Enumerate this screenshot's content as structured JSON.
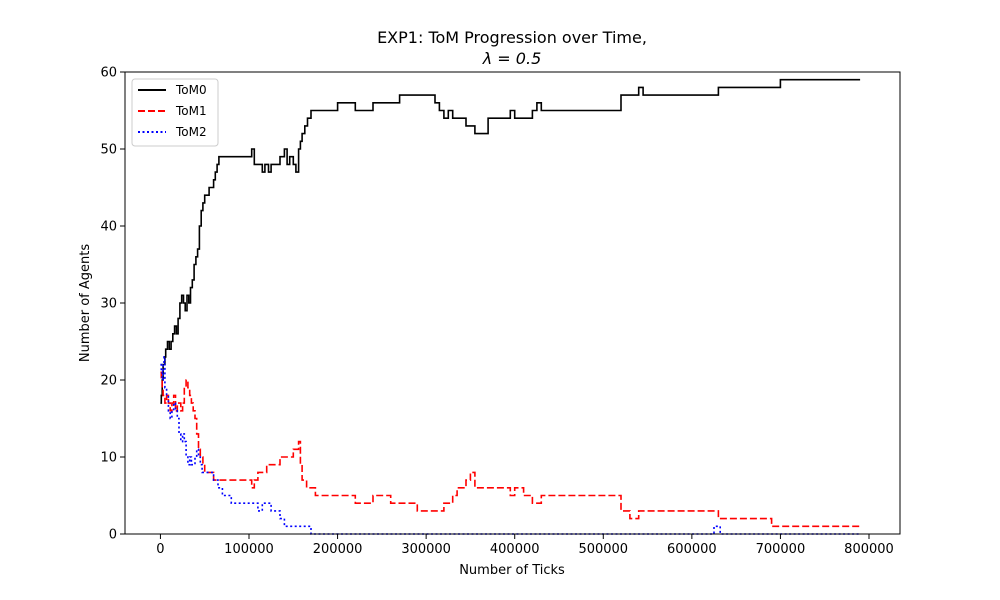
{
  "chart_data": {
    "type": "line",
    "title": "EXP1: ToM Progression over Time,",
    "subtitle": "λ = 0.5",
    "xlabel": "Number of Ticks",
    "ylabel": "Number of Agents",
    "xlim": [
      -40000,
      835000
    ],
    "ylim": [
      0,
      60
    ],
    "xticks": [
      0,
      100000,
      200000,
      300000,
      400000,
      500000,
      600000,
      700000,
      800000
    ],
    "xtick_labels": [
      "0",
      "100000",
      "200000",
      "300000",
      "400000",
      "500000",
      "600000",
      "700000",
      "800000"
    ],
    "yticks": [
      0,
      10,
      20,
      30,
      40,
      50,
      60
    ],
    "ytick_labels": [
      "0",
      "10",
      "20",
      "30",
      "40",
      "50",
      "60"
    ],
    "grid": false,
    "legend_position": "top-left",
    "series": [
      {
        "name": "ToM0",
        "color": "#000000",
        "style": "solid",
        "x": [
          0,
          1000,
          2000,
          3000,
          5000,
          6000,
          8000,
          10000,
          12000,
          14000,
          16000,
          18000,
          20000,
          22000,
          24000,
          26000,
          28000,
          30000,
          32000,
          34000,
          36000,
          38000,
          40000,
          42000,
          44000,
          46000,
          48000,
          50000,
          55000,
          60000,
          62000,
          64000,
          66000,
          68000,
          70000,
          80000,
          100000,
          103000,
          106000,
          110000,
          115000,
          118000,
          122000,
          125000,
          130000,
          135000,
          140000,
          143000,
          146000,
          150000,
          153000,
          156000,
          158000,
          160000,
          163000,
          166000,
          170000,
          175000,
          180000,
          200000,
          205000,
          220000,
          240000,
          245000,
          270000,
          300000,
          310000,
          315000,
          320000,
          325000,
          330000,
          340000,
          345000,
          350000,
          355000,
          370000,
          390000,
          395000,
          400000,
          420000,
          425000,
          430000,
          440000,
          480000,
          490000,
          500000,
          505000,
          520000,
          540000,
          545000,
          560000,
          600000,
          610000,
          625000,
          630000,
          640000,
          680000,
          690000,
          700000,
          720000,
          760000,
          790000
        ],
        "y": [
          17,
          18,
          20,
          22,
          23,
          24,
          25,
          24,
          25,
          26,
          27,
          26,
          28,
          30,
          31,
          30,
          29,
          31,
          30,
          32,
          33,
          35,
          36,
          37,
          40,
          42,
          43,
          44,
          45,
          46,
          47,
          48,
          49,
          49,
          49,
          49,
          49,
          50,
          48,
          48,
          47,
          48,
          47,
          48,
          48,
          49,
          50,
          48,
          49,
          48,
          47,
          50,
          51,
          52,
          53,
          54,
          55,
          55,
          55,
          56,
          56,
          55,
          56,
          56,
          57,
          57,
          56,
          55,
          54,
          55,
          54,
          54,
          53,
          53,
          52,
          54,
          54,
          55,
          54,
          55,
          56,
          55,
          55,
          55,
          55,
          55,
          55,
          57,
          58,
          57,
          57,
          57,
          57,
          57,
          58,
          58,
          58,
          58,
          59,
          59,
          59,
          59
        ]
      },
      {
        "name": "ToM1",
        "color": "#ff0000",
        "style": "dashed",
        "x": [
          0,
          1000,
          2000,
          3000,
          5000,
          7000,
          9000,
          11000,
          13000,
          15000,
          17000,
          19000,
          21000,
          23000,
          25000,
          27000,
          29000,
          31000,
          33000,
          35000,
          37000,
          39000,
          41000,
          43000,
          45000,
          48000,
          50000,
          55000,
          60000,
          65000,
          70000,
          80000,
          90000,
          100000,
          103000,
          106000,
          110000,
          115000,
          120000,
          125000,
          130000,
          135000,
          140000,
          145000,
          150000,
          153000,
          156000,
          158000,
          160000,
          165000,
          175000,
          190000,
          200000,
          220000,
          230000,
          240000,
          250000,
          260000,
          270000,
          290000,
          300000,
          310000,
          320000,
          330000,
          335000,
          340000,
          345000,
          350000,
          355000,
          370000,
          390000,
          395000,
          400000,
          410000,
          420000,
          430000,
          440000,
          460000,
          480000,
          490000,
          500000,
          510000,
          520000,
          530000,
          540000,
          560000,
          600000,
          620000,
          625000,
          630000,
          680000,
          690000,
          700000,
          720000,
          790000
        ],
        "y": [
          21,
          20,
          19,
          18,
          17,
          18,
          17,
          16,
          17,
          18,
          16,
          17,
          17,
          16,
          17,
          19,
          20,
          19,
          18,
          17,
          16,
          15,
          13,
          11,
          10,
          9,
          8,
          8,
          7,
          7,
          7,
          7,
          7,
          7,
          6,
          7,
          8,
          8,
          9,
          9,
          9,
          10,
          10,
          10,
          11,
          11,
          12,
          9,
          7,
          6,
          5,
          5,
          5,
          4,
          4,
          5,
          5,
          4,
          4,
          3,
          3,
          3,
          4,
          5,
          6,
          6,
          7,
          8,
          6,
          6,
          6,
          5,
          6,
          5,
          4,
          5,
          5,
          5,
          5,
          5,
          5,
          5,
          3,
          2,
          3,
          3,
          3,
          3,
          3,
          2,
          2,
          1,
          1,
          1,
          1
        ]
      },
      {
        "name": "ToM2",
        "color": "#0000ff",
        "style": "dotted",
        "x": [
          0,
          1000,
          2000,
          3000,
          4000,
          5000,
          7000,
          9000,
          11000,
          13000,
          15000,
          17000,
          19000,
          21000,
          23000,
          25000,
          27000,
          29000,
          31000,
          33000,
          35000,
          37000,
          39000,
          41000,
          43000,
          45000,
          47000,
          50000,
          55000,
          60000,
          65000,
          70000,
          80000,
          100000,
          105000,
          110000,
          115000,
          120000,
          125000,
          130000,
          135000,
          140000,
          160000,
          165000,
          170000,
          200000,
          300000,
          400000,
          500000,
          600000,
          620000,
          625000,
          628000,
          632000,
          700000,
          790000
        ],
        "y": [
          22,
          21,
          20,
          22,
          23,
          19,
          18,
          16,
          15,
          16,
          17,
          16,
          15,
          13,
          12,
          13,
          12,
          10,
          9,
          10,
          9,
          9,
          10,
          11,
          10,
          9,
          8,
          8,
          8,
          7,
          6,
          5,
          4,
          4,
          4,
          3,
          4,
          4,
          3,
          3,
          2,
          1,
          1,
          1,
          0,
          0,
          0,
          0,
          0,
          0,
          0,
          1,
          1,
          0,
          0,
          0
        ]
      }
    ]
  }
}
